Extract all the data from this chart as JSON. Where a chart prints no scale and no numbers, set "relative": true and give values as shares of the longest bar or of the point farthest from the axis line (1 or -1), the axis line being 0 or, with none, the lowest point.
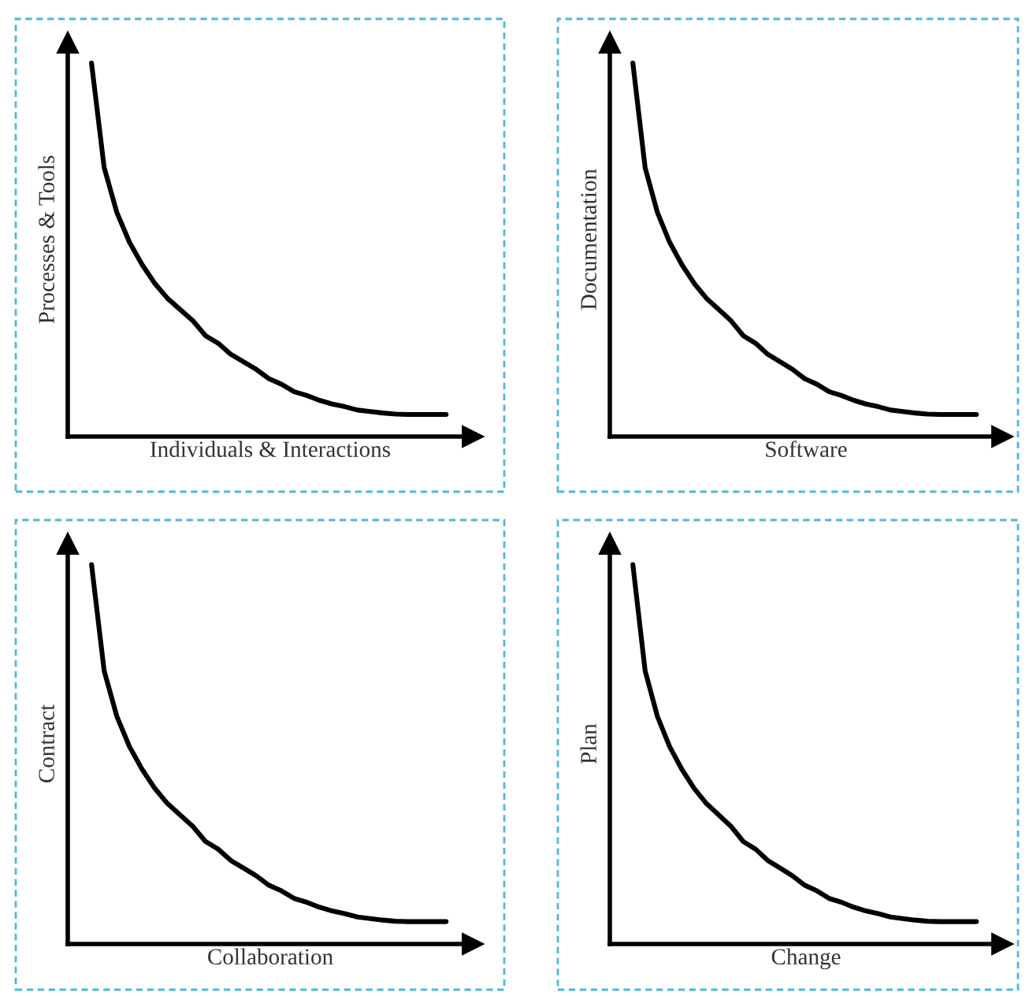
{
  "chart_data": [
    {
      "type": "line",
      "relative": true,
      "tick_labels": false,
      "xlabel": "Individuals & Interactions",
      "ylabel": "Processes & Tools",
      "categories": [
        null,
        null,
        null,
        null,
        null,
        null,
        null,
        null,
        null,
        null,
        null,
        null,
        null,
        null,
        null,
        null,
        null,
        null,
        null,
        null,
        null,
        null,
        null,
        null,
        null,
        null,
        null,
        null,
        null
      ],
      "series": [
        {
          "color": "#000000",
          "values": [
            1,
            0.72,
            0.6,
            0.52,
            0.46,
            0.41,
            0.37,
            0.34,
            0.31,
            0.27,
            0.25,
            0.22,
            0.2,
            0.18,
            0.155,
            0.14,
            0.12,
            0.11,
            0.097,
            0.087,
            0.08,
            0.071,
            0.067,
            0.063,
            0.06,
            0.059,
            0.059,
            0.059,
            0.059
          ]
        }
      ]
    },
    {
      "type": "line",
      "relative": true,
      "tick_labels": false,
      "xlabel": "Software",
      "ylabel": "Documentation",
      "categories": [
        null,
        null,
        null,
        null,
        null,
        null,
        null,
        null,
        null,
        null,
        null,
        null,
        null,
        null,
        null,
        null,
        null,
        null,
        null,
        null,
        null,
        null,
        null,
        null,
        null,
        null,
        null,
        null,
        null
      ],
      "series": [
        {
          "color": "#000000",
          "values": [
            1,
            0.72,
            0.6,
            0.52,
            0.46,
            0.41,
            0.37,
            0.34,
            0.31,
            0.27,
            0.25,
            0.22,
            0.2,
            0.18,
            0.155,
            0.14,
            0.12,
            0.11,
            0.097,
            0.087,
            0.08,
            0.071,
            0.067,
            0.063,
            0.06,
            0.059,
            0.059,
            0.059,
            0.059
          ]
        }
      ]
    },
    {
      "type": "line",
      "relative": true,
      "tick_labels": false,
      "xlabel": "Collaboration",
      "ylabel": "Contract",
      "categories": [
        null,
        null,
        null,
        null,
        null,
        null,
        null,
        null,
        null,
        null,
        null,
        null,
        null,
        null,
        null,
        null,
        null,
        null,
        null,
        null,
        null,
        null,
        null,
        null,
        null,
        null,
        null,
        null,
        null
      ],
      "series": [
        {
          "color": "#000000",
          "values": [
            1,
            0.72,
            0.6,
            0.52,
            0.46,
            0.41,
            0.37,
            0.34,
            0.31,
            0.27,
            0.25,
            0.22,
            0.2,
            0.18,
            0.155,
            0.14,
            0.12,
            0.11,
            0.097,
            0.087,
            0.08,
            0.071,
            0.067,
            0.063,
            0.06,
            0.059,
            0.059,
            0.059,
            0.059
          ]
        }
      ]
    },
    {
      "type": "line",
      "relative": true,
      "tick_labels": false,
      "xlabel": "Change",
      "ylabel": "Plan",
      "categories": [
        null,
        null,
        null,
        null,
        null,
        null,
        null,
        null,
        null,
        null,
        null,
        null,
        null,
        null,
        null,
        null,
        null,
        null,
        null,
        null,
        null,
        null,
        null,
        null,
        null,
        null,
        null,
        null,
        null
      ],
      "series": [
        {
          "color": "#000000",
          "values": [
            1,
            0.72,
            0.6,
            0.52,
            0.46,
            0.41,
            0.37,
            0.34,
            0.31,
            0.27,
            0.25,
            0.22,
            0.2,
            0.18,
            0.155,
            0.14,
            0.12,
            0.11,
            0.097,
            0.087,
            0.08,
            0.071,
            0.067,
            0.063,
            0.06,
            0.059,
            0.059,
            0.059,
            0.059
          ]
        }
      ]
    }
  ]
}
